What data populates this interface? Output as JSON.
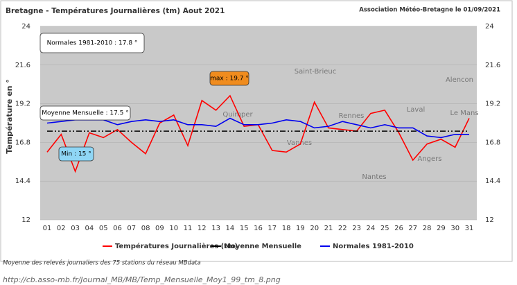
{
  "chart_data": {
    "type": "line",
    "title": "Bretagne - Températures Journalières (tm) Aout 2021",
    "source": "Association Météo-Bretagne le 01/09/2021",
    "y_label": "Température en °",
    "categories": [
      "01",
      "02",
      "03",
      "04",
      "05",
      "06",
      "07",
      "08",
      "09",
      "10",
      "11",
      "12",
      "13",
      "14",
      "15",
      "16",
      "17",
      "18",
      "19",
      "20",
      "21",
      "22",
      "23",
      "24",
      "25",
      "26",
      "27",
      "28",
      "29",
      "30",
      "31"
    ],
    "series": [
      {
        "name": "Températures Journalières (tm)",
        "color": "#ff0000",
        "values": [
          16.2,
          17.3,
          15.0,
          17.4,
          17.1,
          17.6,
          16.8,
          16.1,
          18.0,
          18.5,
          16.6,
          19.4,
          18.8,
          19.7,
          17.8,
          17.9,
          16.3,
          16.2,
          16.7,
          19.3,
          17.7,
          17.6,
          17.5,
          18.6,
          18.8,
          17.4,
          15.7,
          16.7,
          17.0,
          16.5,
          18.3
        ]
      },
      {
        "name": "Moyenne Mensuelle",
        "color": "#000000",
        "style": "dashdot",
        "value": 17.5
      },
      {
        "name": "Normales 1981-2010",
        "color": "#0000ee",
        "values": [
          18.0,
          18.1,
          18.2,
          18.2,
          18.2,
          17.9,
          18.1,
          18.2,
          18.1,
          18.2,
          17.9,
          17.9,
          17.8,
          18.3,
          17.9,
          17.9,
          18.0,
          18.2,
          18.1,
          17.7,
          17.8,
          18.1,
          17.9,
          17.7,
          17.9,
          17.7,
          17.7,
          17.2,
          17.1,
          17.3,
          17.3
        ]
      }
    ],
    "ylim": [
      12,
      24
    ],
    "yticks": [
      12,
      14.4,
      16.8,
      19.2,
      21.6,
      24
    ],
    "annotations": [
      {
        "text": "Normales 1981-2010 : 17.8 °",
        "color": "#ffffff"
      },
      {
        "text": "Moyenne Mensuelle : 17.5 °",
        "color": "#ffffff"
      },
      {
        "text": "max : 19.7 °",
        "color": "#f08c1e"
      },
      {
        "text": "Min : 15 °",
        "color": "#8fd6f5"
      }
    ],
    "map_labels": [
      "Saint-Brieuc",
      "Quimper",
      "Rennes",
      "Laval",
      "Alencon",
      "Le Mans",
      "Vannes",
      "Nantes",
      "Angers"
    ],
    "footnote": "Moyenne des relevés journaliers des 75 stations du réseau MBdata",
    "url": "http://cb.asso-mb.fr/Journal_MB/MB/Temp_Mensuelle_Moy1_99_tm_8.png"
  }
}
